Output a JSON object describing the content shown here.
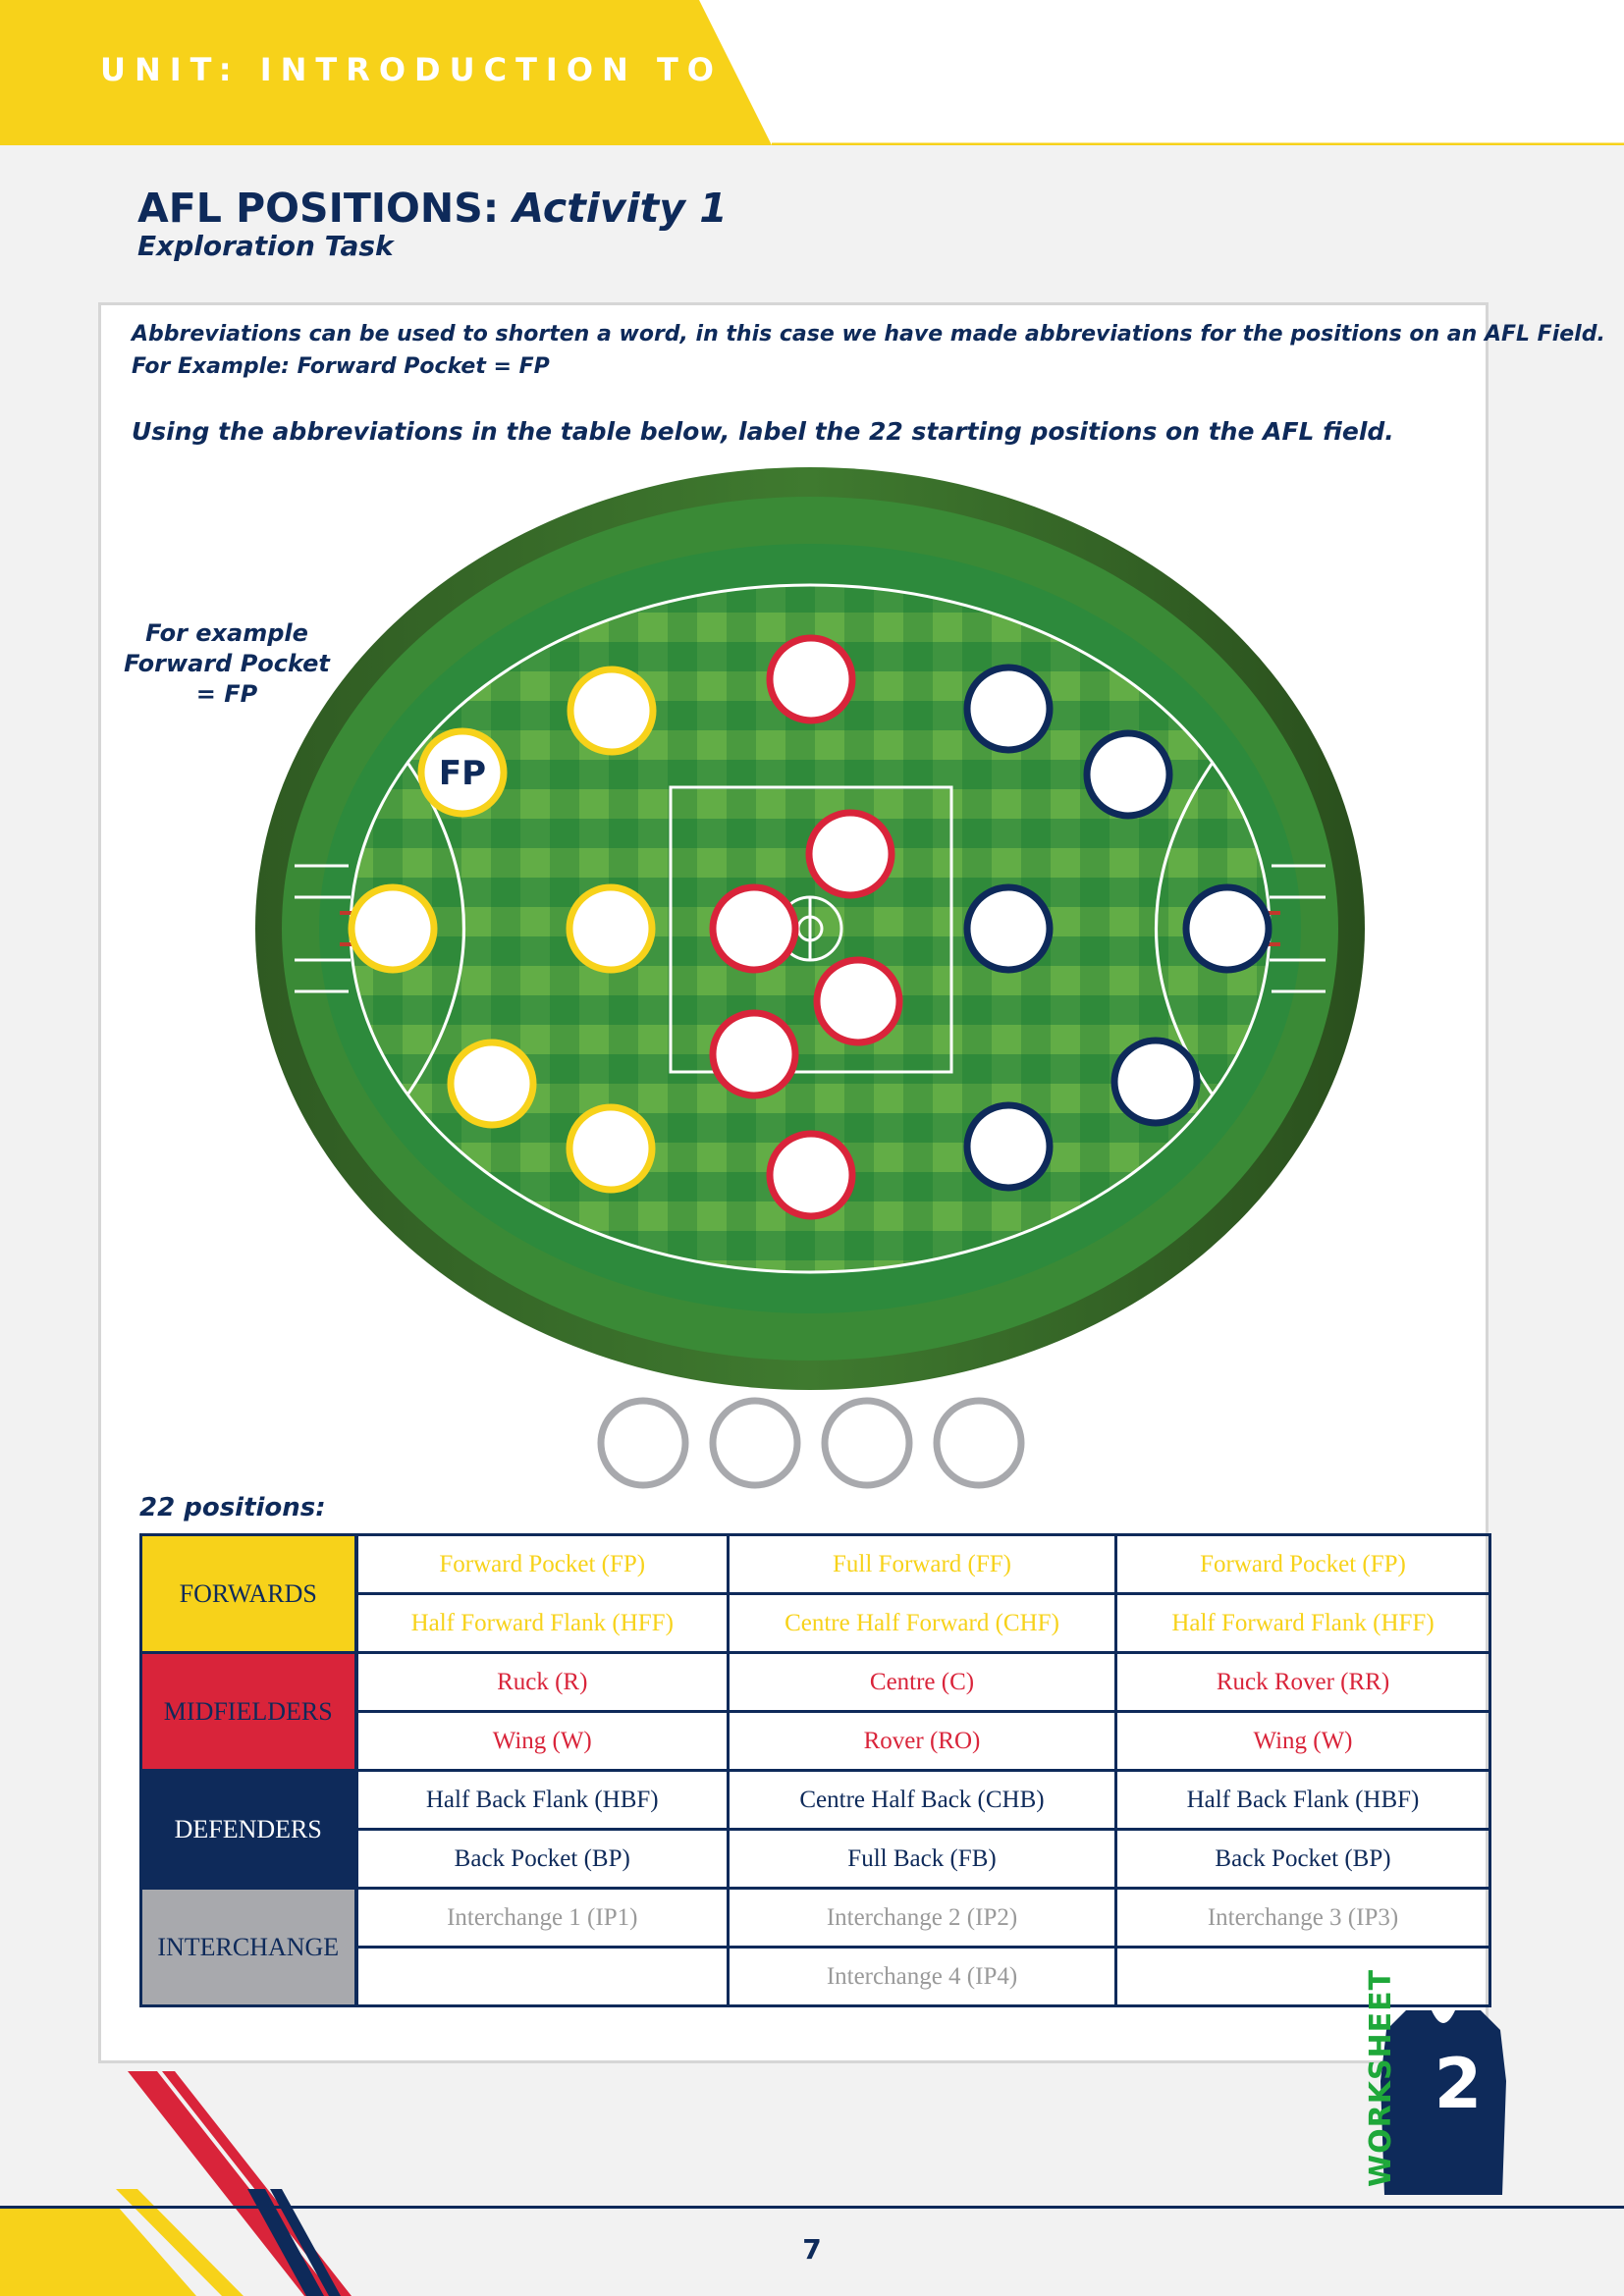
{
  "header": {
    "unit_title": "UNIT: INTRODUCTION TO AFL"
  },
  "title": {
    "main": "AFL POSITIONS:",
    "activity": "Activity 1",
    "subtitle": "Exploration Task"
  },
  "intro": {
    "line1": "Abbreviations can be used to shorten a word, in this case we have made abbreviations for the positions on an AFL Field.",
    "line2": "For Example: Forward Pocket = FP",
    "instruction": "Using the abbreviations in the table below, label the 22 starting positions on the AFL field."
  },
  "example": {
    "line1": "For example",
    "line2": "Forward Pocket",
    "line3": "= FP"
  },
  "field": {
    "example_circle_label": "FP"
  },
  "colors": {
    "forwards": "#f7d21a",
    "midfielders": "#d9243a",
    "defenders": "#0e2a5a",
    "interchange": "#a8a9ad",
    "interchange_text": "#9a9a9a",
    "brand_navy": "#0e2a5a",
    "worksheet_green": "#1fa83a"
  },
  "table": {
    "heading": "22 positions:",
    "groups": [
      {
        "category": "FORWARDS",
        "rows": [
          [
            "Forward Pocket (FP)",
            "Full Forward (FF)",
            "Forward Pocket (FP)"
          ],
          [
            "Half Forward Flank (HFF)",
            "Centre Half Forward (CHF)",
            "Half Forward Flank (HFF)"
          ]
        ]
      },
      {
        "category": "MIDFIELDERS",
        "rows": [
          [
            "Ruck (R)",
            "Centre (C)",
            "Ruck Rover (RR)"
          ],
          [
            "Wing (W)",
            "Rover (RO)",
            "Wing (W)"
          ]
        ]
      },
      {
        "category": "DEFENDERS",
        "rows": [
          [
            "Half Back Flank (HBF)",
            "Centre Half Back (CHB)",
            "Half Back Flank (HBF)"
          ],
          [
            "Back Pocket (BP)",
            "Full Back (FB)",
            "Back Pocket (BP)"
          ]
        ]
      },
      {
        "category": "INTERCHANGE",
        "rows": [
          [
            "Interchange 1 (IP1)",
            "Interchange 2 (IP2)",
            "Interchange 3 (IP3)"
          ],
          [
            "",
            "Interchange 4 (IP4)",
            ""
          ]
        ]
      }
    ]
  },
  "footer": {
    "page_number": "7",
    "worksheet_label": "WORKSHEET",
    "worksheet_number": "2"
  }
}
